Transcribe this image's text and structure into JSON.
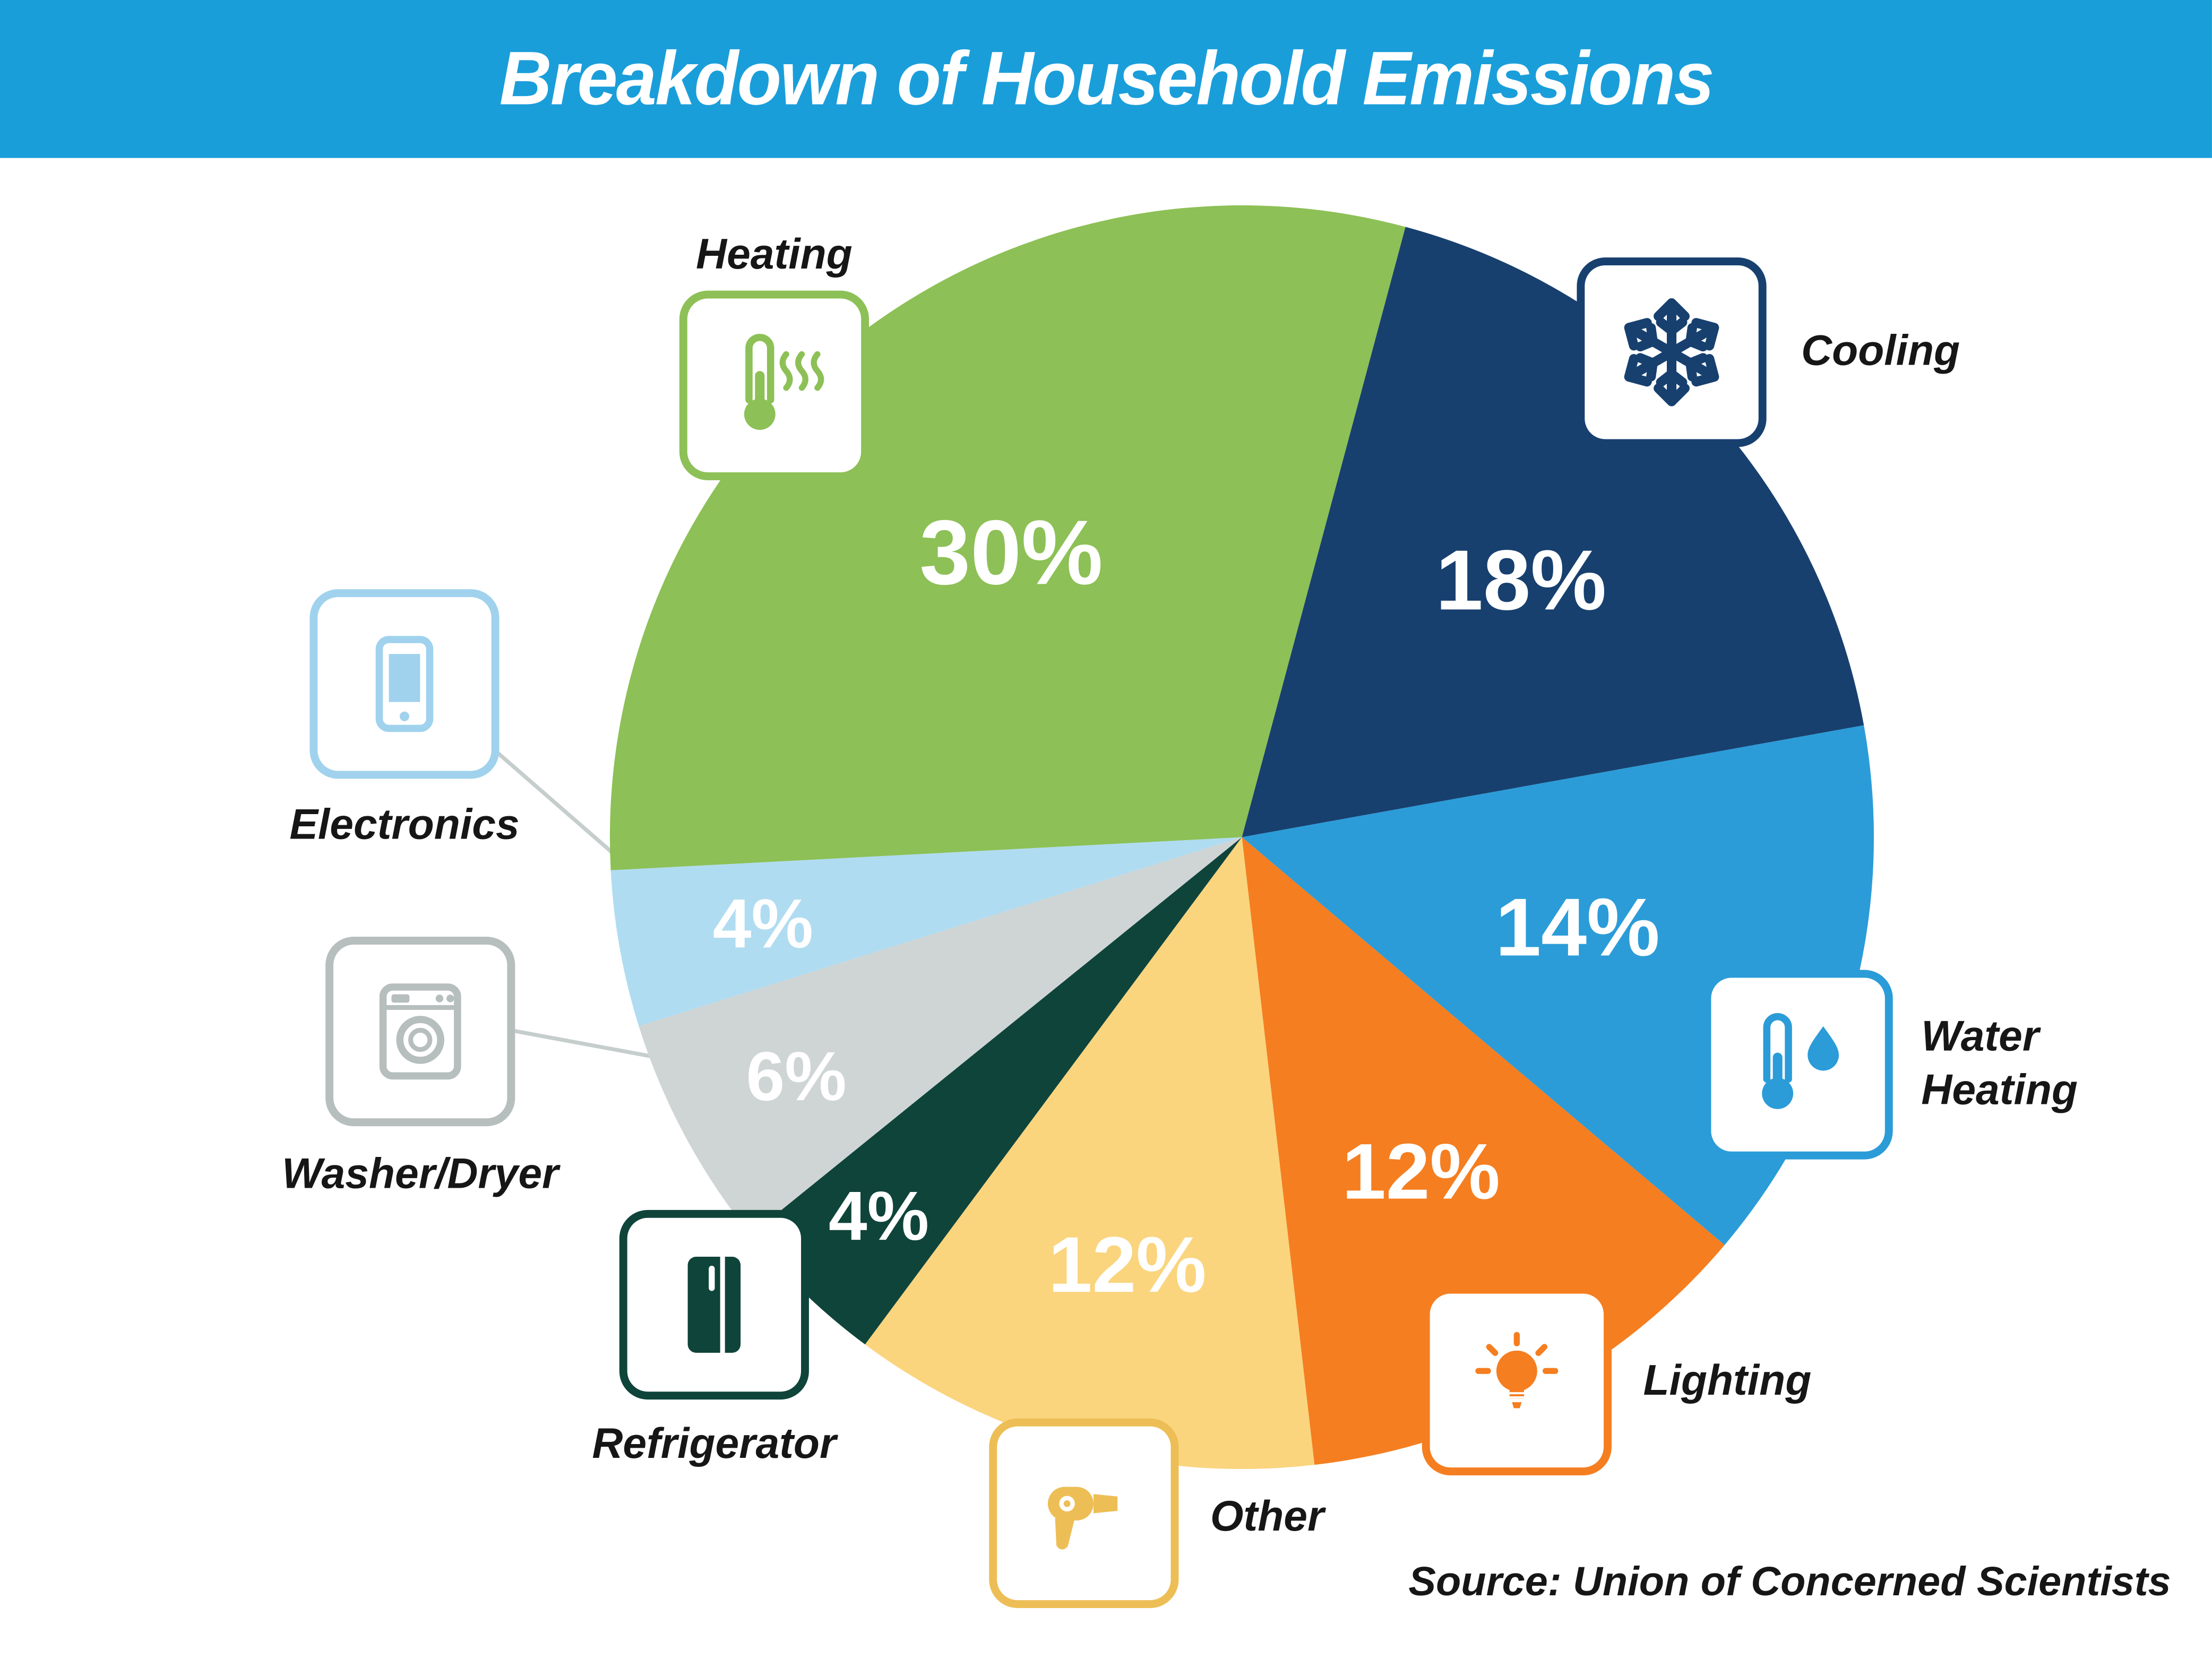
{
  "header": {
    "title": "Breakdown of Household Emissions",
    "background_color": "#1A9EDA",
    "text_color": "#FFFFFF"
  },
  "source_note": "Source: Union of Concerned Scientists",
  "chart_data": {
    "type": "pie",
    "title": "Breakdown of Household Emissions",
    "start_angle_clockwise_from_north_deg": 15,
    "direction": "clockwise",
    "legend_position": "icon-callouts-around-pie",
    "source": "Union of Concerned Scientists",
    "slices": [
      {
        "label": "Cooling",
        "value": 18,
        "percent_label": "18%",
        "color": "#17406F",
        "icon_color": "#17406F",
        "icon": "snowflake-icon"
      },
      {
        "label": "Water Heating",
        "value": 14,
        "percent_label": "14%",
        "color": "#2B9CD8",
        "icon_color": "#2B9CD8",
        "icon": "thermometer-water-drop-icon"
      },
      {
        "label": "Lighting",
        "value": 12,
        "percent_label": "12%",
        "color": "#F57E20",
        "icon_color": "#F57E20",
        "icon": "lightbulb-icon"
      },
      {
        "label": "Other",
        "value": 12,
        "percent_label": "12%",
        "color": "#FAD57E",
        "icon_color": "#EDBE55",
        "icon": "hair-dryer-icon"
      },
      {
        "label": "Refrigerator",
        "value": 4,
        "percent_label": "4%",
        "color": "#0F443A",
        "icon_color": "#0F443A",
        "icon": "refrigerator-icon"
      },
      {
        "label": "Washer/Dryer",
        "value": 6,
        "percent_label": "6%",
        "color": "#CFD5D5",
        "icon_color": "#B6BEBE",
        "icon": "washing-machine-icon"
      },
      {
        "label": "Electronics",
        "value": 4,
        "percent_label": "4%",
        "color": "#B0DCF1",
        "icon_color": "#A0D2EE",
        "icon": "smartphone-icon"
      },
      {
        "label": "Heating",
        "value": 30,
        "percent_label": "30%",
        "color": "#8DC056",
        "icon_color": "#8DC056",
        "icon": "thermometer-heat-icon"
      }
    ]
  }
}
